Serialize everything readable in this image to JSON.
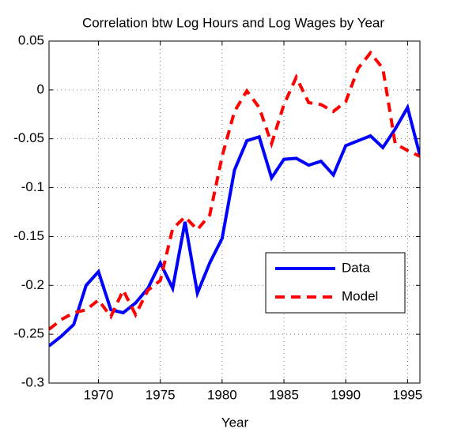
{
  "chart_data": {
    "type": "line",
    "title": "Correlation btw Log Hours and Log Wages by Year",
    "x_label": "Year",
    "x": [
      1966,
      1967,
      1968,
      1969,
      1970,
      1971,
      1972,
      1973,
      1974,
      1975,
      1976,
      1977,
      1978,
      1979,
      1980,
      1981,
      1982,
      1983,
      1984,
      1985,
      1986,
      1987,
      1988,
      1989,
      1990,
      1991,
      1992,
      1993,
      1994,
      1995,
      1996
    ],
    "series": [
      {
        "name": "Data",
        "color": "#0000ff",
        "dash": "solid",
        "values": [
          -0.262,
          -0.252,
          -0.24,
          -0.2,
          -0.186,
          -0.225,
          -0.228,
          -0.218,
          -0.203,
          -0.177,
          -0.203,
          -0.135,
          -0.208,
          -0.177,
          -0.152,
          -0.082,
          -0.052,
          -0.048,
          -0.09,
          -0.071,
          -0.07,
          -0.077,
          -0.073,
          -0.087,
          -0.057,
          -0.052,
          -0.047,
          -0.059,
          -0.04,
          -0.018,
          -0.067
        ]
      },
      {
        "name": "Model",
        "color": "#ff0000",
        "dash": "dashed",
        "values": [
          -0.245,
          -0.235,
          -0.228,
          -0.225,
          -0.215,
          -0.232,
          -0.205,
          -0.23,
          -0.205,
          -0.195,
          -0.142,
          -0.13,
          -0.143,
          -0.128,
          -0.068,
          -0.022,
          -0.001,
          -0.018,
          -0.055,
          -0.015,
          0.013,
          -0.013,
          -0.015,
          -0.022,
          -0.012,
          0.022,
          0.038,
          0.022,
          -0.055,
          -0.062,
          -0.068
        ]
      }
    ],
    "xlim": [
      1966,
      1996
    ],
    "xticks": [
      1970,
      1975,
      1980,
      1985,
      1990,
      1995
    ],
    "ylim": [
      -0.3,
      0.05
    ],
    "yticks": [
      -0.3,
      -0.25,
      -0.2,
      -0.15,
      -0.1,
      -0.05,
      0,
      0.05
    ],
    "grid": true,
    "legend": "lower right"
  }
}
